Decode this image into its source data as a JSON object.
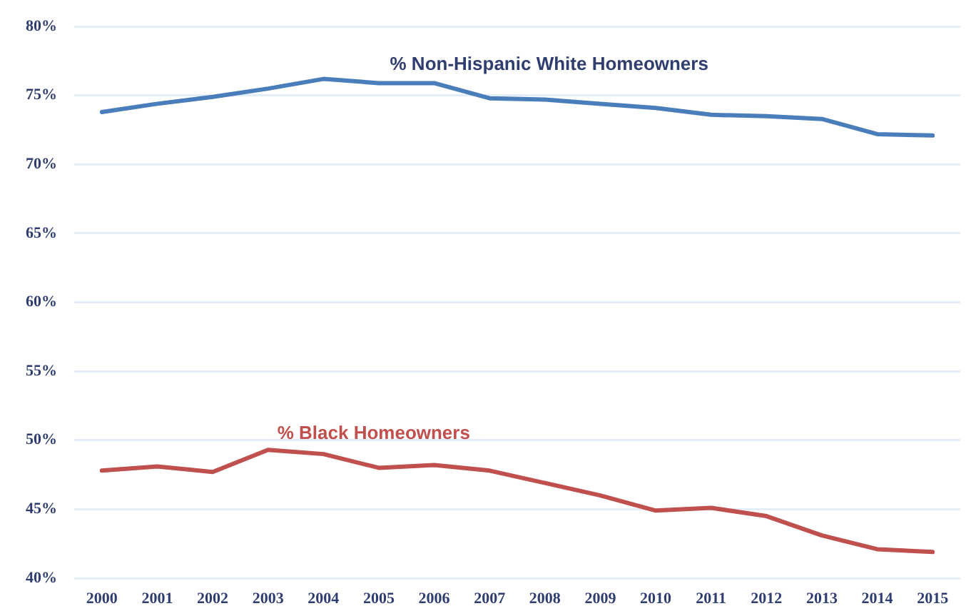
{
  "chart_data": {
    "type": "line",
    "categories": [
      "2000",
      "2001",
      "2002",
      "2003",
      "2004",
      "2005",
      "2006",
      "2007",
      "2008",
      "2009",
      "2010",
      "2011",
      "2012",
      "2013",
      "2014",
      "2015"
    ],
    "series": [
      {
        "name": "% Non-Hispanic White Homeowners",
        "color": "#4a7ebb",
        "values": [
          73.8,
          74.4,
          74.9,
          75.5,
          76.2,
          75.9,
          75.9,
          74.8,
          74.7,
          74.4,
          74.1,
          73.6,
          73.5,
          73.3,
          72.2,
          72.1
        ]
      },
      {
        "name": "% Black Homeowners",
        "color": "#c0504d",
        "values": [
          47.8,
          48.1,
          47.7,
          49.3,
          49.0,
          48.0,
          48.2,
          47.8,
          46.9,
          46.0,
          44.9,
          45.1,
          44.5,
          43.1,
          42.1,
          41.9
        ]
      }
    ],
    "ylim": [
      40,
      80
    ],
    "yticks": [
      {
        "value": 40,
        "label": "40%"
      },
      {
        "value": 45,
        "label": "45%"
      },
      {
        "value": 50,
        "label": "50%"
      },
      {
        "value": 55,
        "label": "55%"
      },
      {
        "value": 60,
        "label": "60%"
      },
      {
        "value": 65,
        "label": "65%"
      },
      {
        "value": 70,
        "label": "70%"
      },
      {
        "value": 75,
        "label": "75%"
      },
      {
        "value": 80,
        "label": "80%"
      }
    ],
    "grid": "y"
  }
}
